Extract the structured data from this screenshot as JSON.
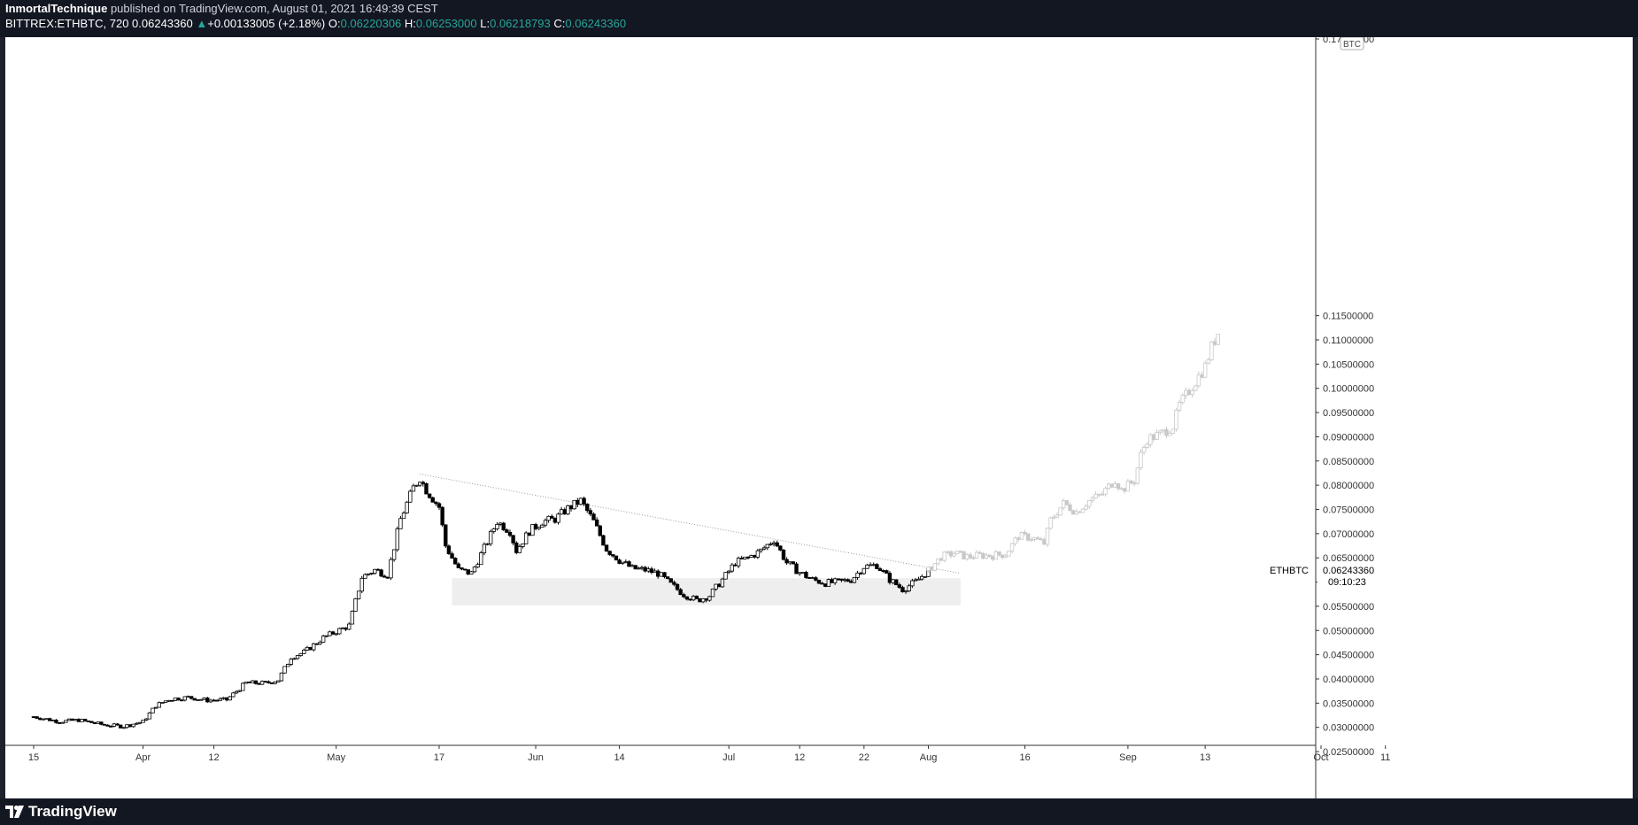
{
  "header": {
    "author": "InmortalTechnique",
    "published_text": "published on TradingView.com, August 01, 2021 16:49:39 CEST",
    "symbol": "BITTREX:ETHBTC, 720",
    "last": "0.06243360",
    "change_arrow": "▲",
    "change": "+0.00133005 (+2.18%)",
    "open_label": "O:",
    "open": "0.06220306",
    "high_label": "H:",
    "high": "0.06253000",
    "low_label": "L:",
    "low": "0.06218793",
    "close_label": "C:",
    "close": "0.06243360"
  },
  "footer": {
    "logo_text": "TradingView"
  },
  "colors": {
    "topbar_bg": "#131722",
    "up": "#26a69a",
    "candle": "#000000",
    "projection": "#c8c8c8",
    "zone": "#eeeeee"
  },
  "chart_data": {
    "type": "candlestick",
    "currency_unit": "BTC",
    "symbol_label": "ETHBTC",
    "last_price_label": "0.06243360",
    "countdown": "09:10:23",
    "ylim": [
      0.023,
      0.1725
    ],
    "yticks": [
      0.025,
      0.03,
      0.035,
      0.04,
      0.045,
      0.05,
      0.055,
      0.06,
      0.065,
      0.07,
      0.075,
      0.08,
      0.085,
      0.09,
      0.095,
      0.1,
      0.105,
      0.11,
      0.115,
      0.17
    ],
    "ytick_labels": [
      "0.02500000",
      "0.03000000",
      "0.03500000",
      "0.04000000",
      "0.04500000",
      "0.05000000",
      "0.05500000",
      "0.06000000",
      "0.06500000",
      "0.07000000",
      "0.07500000",
      "0.08000000",
      "0.08500000",
      "0.09000000",
      "0.09500000",
      "0.10000000",
      "0.10500000",
      "0.11000000",
      "0.11500000",
      "0.17000000"
    ],
    "xticks": [
      {
        "day": 0,
        "label": "15"
      },
      {
        "day": 17,
        "label": "Apr"
      },
      {
        "day": 28,
        "label": "12"
      },
      {
        "day": 47,
        "label": "May"
      },
      {
        "day": 63,
        "label": "17"
      },
      {
        "day": 78,
        "label": "Jun"
      },
      {
        "day": 91,
        "label": "14"
      },
      {
        "day": 108,
        "label": "Jul"
      },
      {
        "day": 119,
        "label": "12"
      },
      {
        "day": 129,
        "label": "22"
      },
      {
        "day": 139,
        "label": "Aug"
      },
      {
        "day": 154,
        "label": "16"
      },
      {
        "day": 170,
        "label": "Sep"
      },
      {
        "day": 182,
        "label": "13"
      },
      {
        "day": 200,
        "label": "Oct"
      },
      {
        "day": 210,
        "label": "11"
      }
    ],
    "price_path": [
      [
        0,
        0.0322
      ],
      [
        4,
        0.0312
      ],
      [
        7,
        0.0315
      ],
      [
        11,
        0.0305
      ],
      [
        14,
        0.0302
      ],
      [
        17,
        0.0312
      ],
      [
        19,
        0.0345
      ],
      [
        21,
        0.0358
      ],
      [
        24,
        0.0362
      ],
      [
        27,
        0.0356
      ],
      [
        30,
        0.0357
      ],
      [
        33,
        0.0392
      ],
      [
        36,
        0.0391
      ],
      [
        38,
        0.0398
      ],
      [
        40,
        0.0445
      ],
      [
        42,
        0.0455
      ],
      [
        45,
        0.0485
      ],
      [
        47,
        0.0498
      ],
      [
        49,
        0.051
      ],
      [
        51,
        0.061
      ],
      [
        53,
        0.0625
      ],
      [
        55,
        0.0615
      ],
      [
        57,
        0.073
      ],
      [
        59,
        0.0795
      ],
      [
        60,
        0.0815
      ],
      [
        61,
        0.079
      ],
      [
        63,
        0.0755
      ],
      [
        64,
        0.0675
      ],
      [
        66,
        0.0625
      ],
      [
        68,
        0.0618
      ],
      [
        70,
        0.067
      ],
      [
        72,
        0.0725
      ],
      [
        74,
        0.0705
      ],
      [
        75,
        0.0665
      ],
      [
        77,
        0.0705
      ],
      [
        79,
        0.0725
      ],
      [
        81,
        0.073
      ],
      [
        83,
        0.0752
      ],
      [
        85,
        0.0768
      ],
      [
        87,
        0.0725
      ],
      [
        89,
        0.0668
      ],
      [
        91,
        0.0645
      ],
      [
        93,
        0.0628
      ],
      [
        95,
        0.0625
      ],
      [
        97,
        0.0618
      ],
      [
        99,
        0.0595
      ],
      [
        101,
        0.0575
      ],
      [
        103,
        0.0562
      ],
      [
        105,
        0.0572
      ],
      [
        107,
        0.0605
      ],
      [
        109,
        0.064
      ],
      [
        111,
        0.065
      ],
      [
        113,
        0.0665
      ],
      [
        115,
        0.0688
      ],
      [
        117,
        0.064
      ],
      [
        119,
        0.062
      ],
      [
        121,
        0.0605
      ],
      [
        123,
        0.0598
      ],
      [
        125,
        0.06
      ],
      [
        127,
        0.0605
      ],
      [
        129,
        0.0632
      ],
      [
        131,
        0.0635
      ],
      [
        133,
        0.0605
      ],
      [
        135,
        0.0585
      ],
      [
        137,
        0.06
      ],
      [
        139,
        0.0624
      ]
    ],
    "projection_path": [
      [
        139,
        0.0624
      ],
      [
        141,
        0.0652
      ],
      [
        143,
        0.066
      ],
      [
        145,
        0.0652
      ],
      [
        147,
        0.0655
      ],
      [
        149,
        0.0655
      ],
      [
        151,
        0.0658
      ],
      [
        153,
        0.0695
      ],
      [
        155,
        0.0692
      ],
      [
        157,
        0.068
      ],
      [
        158,
        0.0728
      ],
      [
        160,
        0.0762
      ],
      [
        162,
        0.0745
      ],
      [
        164,
        0.0768
      ],
      [
        166,
        0.0782
      ],
      [
        168,
        0.0812
      ],
      [
        169,
        0.079
      ],
      [
        171,
        0.081
      ],
      [
        172,
        0.0862
      ],
      [
        173,
        0.0895
      ],
      [
        175,
        0.0905
      ],
      [
        177,
        0.0922
      ],
      [
        178,
        0.0965
      ],
      [
        180,
        0.1005
      ],
      [
        182,
        0.1045
      ],
      [
        183,
        0.1085
      ],
      [
        184,
        0.1115
      ]
    ],
    "trendline": [
      [
        60,
        0.0823
      ],
      [
        144,
        0.0618
      ]
    ],
    "support_zone": {
      "x0": 65,
      "x1": 144,
      "y0": 0.0552,
      "y1": 0.0608
    }
  }
}
